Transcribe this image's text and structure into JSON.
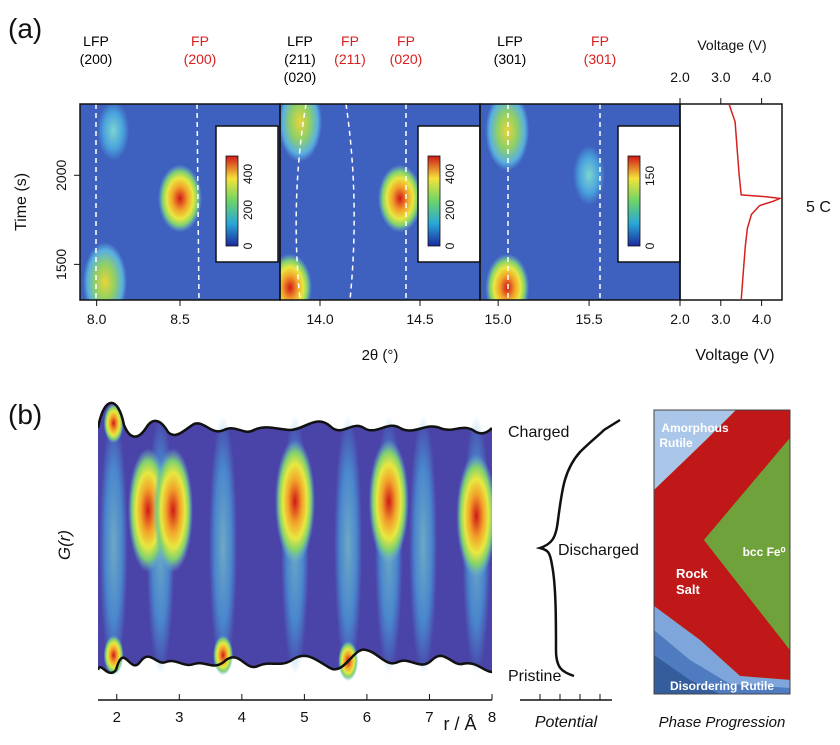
{
  "colors": {
    "black": "#111111",
    "red": "#d62020",
    "bg": "#4a44a8",
    "trace": "#d62020"
  },
  "panel_a": {
    "label": "(a)",
    "ylabel": "Time (s)",
    "xlabel": "2θ (°)",
    "rate_label": "5 C",
    "peaks": [
      {
        "line1": "LFP",
        "line2": "(200)",
        "color": "black"
      },
      {
        "line1": "FP",
        "line2": "(200)",
        "color": "red"
      },
      {
        "line1": "LFP",
        "line2": "(211)",
        "line3": "(020)",
        "color": "black"
      },
      {
        "line1": "FP",
        "line2": "(211)",
        "color": "red"
      },
      {
        "line1": "FP",
        "line2": "(020)",
        "color": "red"
      },
      {
        "line1": "LFP",
        "line2": "(301)",
        "color": "black"
      },
      {
        "line1": "FP",
        "line2": "(301)",
        "color": "red"
      }
    ]
  },
  "panel_b": {
    "label": "(b)",
    "ylabel": "G(r)",
    "xlabel": "r / Å",
    "potential_label": "Potential",
    "states": [
      "Charged",
      "Discharged",
      "Pristine"
    ],
    "phase_title": "Phase Progression",
    "phases": [
      "Amorphous Rutile",
      "Rock Salt",
      "bcc Fe⁰",
      "Disordering Rutile"
    ]
  },
  "chart_data": [
    {
      "type": "heatmap",
      "title": "",
      "xlabel": "2θ (°)",
      "ylabel": "Time (s)",
      "ylim": [
        1300,
        2400
      ],
      "yticks": [
        1500,
        2000
      ],
      "subplots": [
        {
          "xlim": [
            7.9,
            9.1
          ],
          "xticks": [
            8.0,
            8.5
          ],
          "colorbar": {
            "ticks": [
              0,
              200,
              400
            ],
            "max": 500
          },
          "hotspots": [
            {
              "x": 8.1,
              "y": 2250,
              "level": "low"
            },
            {
              "x": 8.5,
              "y": 1870,
              "level": "max"
            },
            {
              "x": 8.05,
              "y": 1400,
              "level": "medium"
            }
          ]
        },
        {
          "xlim": [
            13.8,
            14.8
          ],
          "xticks": [
            14.0,
            14.5
          ],
          "colorbar": {
            "ticks": [
              0,
              200,
              400
            ],
            "max": 500
          },
          "hotspots": [
            {
              "x": 13.85,
              "y": 1370,
              "level": "max"
            },
            {
              "x": 14.4,
              "y": 1870,
              "level": "max"
            },
            {
              "x": 13.9,
              "y": 2300,
              "level": "medium"
            }
          ]
        },
        {
          "xlim": [
            14.9,
            16.0
          ],
          "xticks": [
            15.0,
            15.5
          ],
          "colorbar": {
            "ticks": [
              0,
              150
            ],
            "max": 200
          },
          "hotspots": [
            {
              "x": 15.05,
              "y": 1370,
              "level": "max"
            },
            {
              "x": 15.05,
              "y": 2250,
              "level": "medium"
            },
            {
              "x": 15.5,
              "y": 2000,
              "level": "low"
            }
          ]
        }
      ]
    },
    {
      "type": "line",
      "title": "Voltage (V)",
      "xlabel": "Voltage (V)",
      "xlim": [
        2.0,
        4.5
      ],
      "xticks": [
        2.0,
        3.0,
        4.0
      ],
      "ylim": [
        1300,
        2400
      ],
      "x": [
        3.5,
        3.55,
        3.6,
        3.65,
        3.75,
        3.95,
        4.3,
        4.45,
        4.1,
        3.5,
        3.45,
        3.4,
        3.35,
        3.2
      ],
      "y": [
        1300,
        1450,
        1600,
        1700,
        1780,
        1830,
        1855,
        1870,
        1880,
        1890,
        2000,
        2150,
        2300,
        2400
      ]
    },
    {
      "type": "heatmap",
      "title": "",
      "xlabel": "r / Å",
      "ylabel": "G(r)",
      "xlim": [
        1.7,
        8.0
      ],
      "xticks": [
        2,
        3,
        4,
        5,
        6,
        7,
        8
      ],
      "hotspots": [
        {
          "x": 1.95,
          "y": 0.92,
          "level": "max"
        },
        {
          "x": 2.5,
          "y": 0.62,
          "level": "max"
        },
        {
          "x": 2.9,
          "y": 0.62,
          "level": "max"
        },
        {
          "x": 4.85,
          "y": 0.65,
          "level": "max"
        },
        {
          "x": 6.35,
          "y": 0.65,
          "level": "max"
        },
        {
          "x": 7.75,
          "y": 0.6,
          "level": "max"
        },
        {
          "x": 1.95,
          "y": 0.12,
          "level": "max"
        },
        {
          "x": 3.7,
          "y": 0.12,
          "level": "max"
        },
        {
          "x": 5.7,
          "y": 0.1,
          "level": "max"
        }
      ]
    }
  ]
}
